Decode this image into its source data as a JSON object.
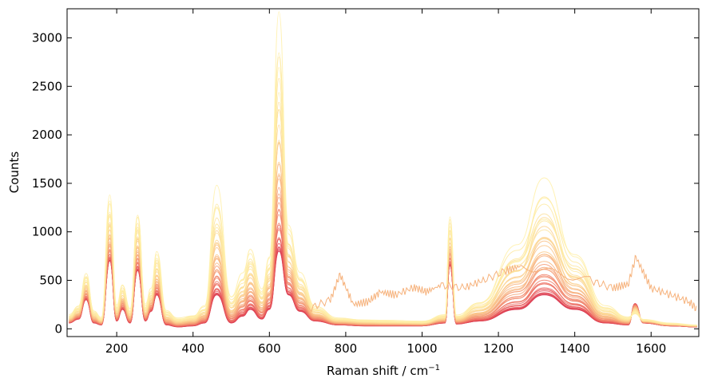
{
  "chart_data": {
    "type": "line",
    "title": "",
    "xlabel": "Raman shift / cm",
    "xlabel_sup": "−1",
    "ylabel": "Counts",
    "xlim": [
      70,
      1725
    ],
    "ylim": [
      -80,
      3300
    ],
    "xticks": [
      200,
      400,
      600,
      800,
      1000,
      1200,
      1400,
      1600
    ],
    "yticks": [
      0,
      500,
      1000,
      1500,
      2000,
      2500,
      3000
    ],
    "grid": false,
    "legend": "none",
    "colormap": [
      "#d8344f",
      "#e8585a",
      "#f0806a",
      "#f6a878",
      "#fbc98a",
      "#fde29a",
      "#fff0a8"
    ],
    "representative_series": [
      {
        "x": [
          75,
          100,
          120,
          140,
          160,
          182,
          200,
          215,
          235,
          255,
          275,
          290,
          305,
          330,
          360,
          400,
          430,
          462,
          500,
          530,
          550,
          580,
          600,
          625,
          650,
          680,
          720,
          780,
          850,
          900,
          1000,
          1060,
          1073,
          1090,
          1150,
          1250,
          1320,
          1400,
          1480,
          1540,
          1558,
          1580,
          1650,
          1720
        ],
        "y_high": [
          150,
          250,
          600,
          200,
          120,
          1400,
          250,
          480,
          220,
          1260,
          260,
          420,
          820,
          200,
          120,
          150,
          250,
          1480,
          350,
          600,
          880,
          450,
          800,
          3280,
          1100,
          600,
          250,
          120,
          100,
          90,
          80,
          150,
          1200,
          150,
          300,
          900,
          1560,
          800,
          250,
          130,
          140,
          100,
          60,
          40
        ],
        "y_low": [
          60,
          100,
          300,
          60,
          40,
          700,
          80,
          200,
          60,
          600,
          80,
          180,
          350,
          40,
          20,
          30,
          60,
          350,
          60,
          130,
          200,
          100,
          200,
          800,
          350,
          180,
          80,
          40,
          30,
          30,
          30,
          60,
          650,
          50,
          80,
          200,
          350,
          200,
          60,
          40,
          260,
          60,
          30,
          20
        ]
      },
      {
        "name": "",
        "x": [
          700,
          760,
          785,
          820,
          860,
          890,
          930,
          980,
          1010,
          1050,
          1110,
          1160,
          1220,
          1260,
          1440,
          1500,
          1540,
          1560,
          1600,
          1650,
          1700,
          1720
        ],
        "y": [
          200,
          300,
          560,
          250,
          280,
          380,
          350,
          430,
          380,
          450,
          420,
          500,
          600,
          650,
          500,
          420,
          460,
          740,
          420,
          350,
          280,
          200
        ]
      }
    ],
    "series_count_estimate": 40
  }
}
